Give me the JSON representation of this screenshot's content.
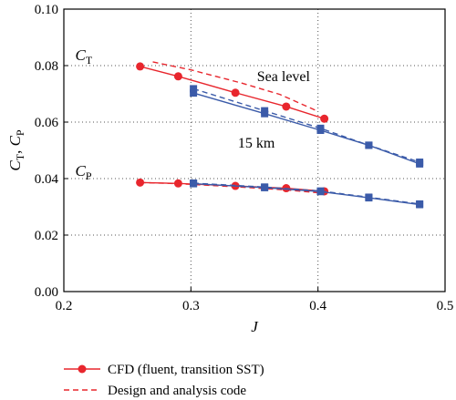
{
  "chart_data": {
    "type": "line",
    "xlabel": "J",
    "ylabel": {
      "main": "C",
      "sub1": "T",
      "sep": ", ",
      "sub2": "P"
    },
    "xlim": [
      0.2,
      0.5
    ],
    "ylim": [
      0.0,
      0.1
    ],
    "xticks": [
      "0.2",
      "0.3",
      "0.4",
      "0.5"
    ],
    "yticks": [
      "0.00",
      "0.02",
      "0.04",
      "0.06",
      "0.08",
      "0.10"
    ],
    "grid": "dotted",
    "colors": {
      "red": "#e8262d",
      "blue": "#3b5ba9"
    },
    "annotations": [
      {
        "id": "ct",
        "main": "C",
        "sub": "T",
        "x": 0.209,
        "y": 0.082
      },
      {
        "id": "cp",
        "main": "C",
        "sub": "P",
        "x": 0.209,
        "y": 0.041
      },
      {
        "id": "sea",
        "text": "Sea level",
        "x": 0.352,
        "y": 0.0745
      },
      {
        "id": "15km",
        "text": "15 km",
        "x": 0.337,
        "y": 0.051
      }
    ],
    "series": [
      {
        "key": "ct_sea_cfd",
        "color": "red",
        "dash": false,
        "marker": "circle",
        "x": [
          0.26,
          0.29,
          0.335,
          0.375,
          0.405
        ],
        "y": [
          0.0797,
          0.0762,
          0.0704,
          0.0655,
          0.0612
        ]
      },
      {
        "key": "ct_sea_code",
        "color": "red",
        "dash": true,
        "marker": "none",
        "x": [
          0.27,
          0.3,
          0.34,
          0.37,
          0.4
        ],
        "y": [
          0.0813,
          0.0785,
          0.0738,
          0.0698,
          0.0638
        ]
      },
      {
        "key": "ct_15km_cfd",
        "color": "blue",
        "dash": false,
        "marker": "square",
        "x": [
          0.302,
          0.358,
          0.402,
          0.44,
          0.48
        ],
        "y": [
          0.0703,
          0.063,
          0.0571,
          0.0518,
          0.0452
        ]
      },
      {
        "key": "ct_15km_code",
        "color": "blue",
        "dash": true,
        "marker": "square",
        "x": [
          0.302,
          0.358,
          0.402,
          0.44,
          0.48
        ],
        "y": [
          0.0718,
          0.064,
          0.0578,
          0.0518,
          0.0458
        ]
      },
      {
        "key": "cp_sea_cfd",
        "color": "red",
        "dash": false,
        "marker": "circle",
        "x": [
          0.26,
          0.29,
          0.335,
          0.375,
          0.405
        ],
        "y": [
          0.0386,
          0.0383,
          0.0374,
          0.0366,
          0.0355
        ]
      },
      {
        "key": "cp_sea_code",
        "color": "red",
        "dash": true,
        "marker": "none",
        "x": [
          0.26,
          0.29,
          0.335,
          0.375,
          0.405
        ],
        "y": [
          0.0386,
          0.0382,
          0.0371,
          0.036,
          0.0348
        ]
      },
      {
        "key": "cp_15km_cfd",
        "color": "blue",
        "dash": false,
        "marker": "square",
        "x": [
          0.302,
          0.358,
          0.402,
          0.44,
          0.48
        ],
        "y": [
          0.0382,
          0.0368,
          0.0354,
          0.0332,
          0.0308
        ]
      },
      {
        "key": "cp_15km_code",
        "color": "blue",
        "dash": true,
        "marker": "square",
        "x": [
          0.302,
          0.358,
          0.402,
          0.44,
          0.48
        ],
        "y": [
          0.0384,
          0.037,
          0.0356,
          0.0334,
          0.031
        ]
      }
    ],
    "legend": {
      "position": "bottom-left",
      "entries": [
        {
          "label": "CFD (fluent, transition SST)",
          "color": "red",
          "dash": false,
          "marker": "circle"
        },
        {
          "label": "Design and analysis code",
          "color": "red",
          "dash": true,
          "marker": "none"
        }
      ]
    }
  }
}
